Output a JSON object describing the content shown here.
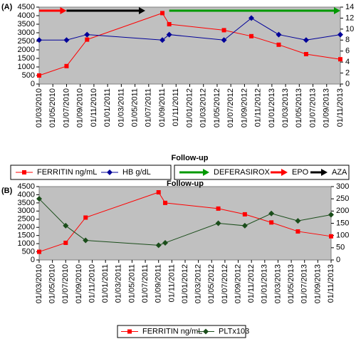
{
  "chart_data": [
    {
      "type": "line",
      "label": "(A)",
      "xlabel": "Follow-up",
      "xlim": [
        0,
        44
      ],
      "xticks": [
        {
          "value": 0,
          "label": "01/03/2010"
        },
        {
          "value": 2,
          "label": "01/05/2010"
        },
        {
          "value": 4,
          "label": "01/07/2010"
        },
        {
          "value": 6,
          "label": "01/09/2010"
        },
        {
          "value": 8,
          "label": "01/11/2010"
        },
        {
          "value": 10,
          "label": "01/01/2011"
        },
        {
          "value": 12,
          "label": "01/03/2011"
        },
        {
          "value": 14,
          "label": "01/05/2011"
        },
        {
          "value": 16,
          "label": "01/07/2011"
        },
        {
          "value": 18,
          "label": "01/09/2011"
        },
        {
          "value": 20,
          "label": "01/11/2011"
        },
        {
          "value": 22,
          "label": "01/01/2012"
        },
        {
          "value": 24,
          "label": "01/03/2012"
        },
        {
          "value": 26,
          "label": "01/05/2012"
        },
        {
          "value": 28,
          "label": "01/07/2012"
        },
        {
          "value": 30,
          "label": "01/09/2012"
        },
        {
          "value": 32,
          "label": "01/11/2012"
        },
        {
          "value": 34,
          "label": "01/01/2013"
        },
        {
          "value": 36,
          "label": "01/03/2013"
        },
        {
          "value": 38,
          "label": "01/05/2013"
        },
        {
          "value": 40,
          "label": "01/07/2013"
        },
        {
          "value": 42,
          "label": "01/09/2013"
        },
        {
          "value": 44,
          "label": "01/11/2013"
        }
      ],
      "ylim": [
        0,
        4500
      ],
      "yticks": [
        0,
        500,
        1000,
        1500,
        2000,
        2500,
        3000,
        3500,
        4000,
        4500
      ],
      "y2lim": [
        0,
        14
      ],
      "y2ticks": [
        0,
        2,
        4,
        6,
        8,
        10,
        12,
        14
      ],
      "background": "#c0c0c0",
      "series": [
        {
          "name": "FERRITIN ng/mL",
          "color": "#ff0000",
          "marker": "square",
          "x": [
            0,
            4,
            7,
            18,
            19,
            27,
            31,
            35,
            39,
            44
          ],
          "values": [
            500,
            1050,
            2600,
            4150,
            3500,
            3150,
            2800,
            2300,
            1750,
            1450
          ]
        },
        {
          "name": "HB g/dL",
          "color": "#000099",
          "marker": "diamond",
          "axis": "y2",
          "x": [
            0,
            4,
            7,
            18,
            19,
            27,
            31,
            35,
            39,
            44
          ],
          "values": [
            8,
            8,
            9,
            8,
            9,
            8,
            12,
            9,
            8,
            9
          ]
        }
      ],
      "arrows": [
        {
          "name": "DEFERASIROX",
          "color": "#009900",
          "x": [
            19,
            44
          ]
        },
        {
          "name": "EPO",
          "color": "#ff0000",
          "x": [
            0,
            4
          ]
        },
        {
          "name": "AZA",
          "color": "#000000",
          "x": [
            4,
            15.5
          ]
        }
      ]
    },
    {
      "type": "line",
      "label": "(B)",
      "xlabel": "Follow-up",
      "xlim": [
        0,
        44
      ],
      "xticks": [
        {
          "value": 0,
          "label": "01/03/2010"
        },
        {
          "value": 2,
          "label": "01/05/2010"
        },
        {
          "value": 4,
          "label": "01/07/2010"
        },
        {
          "value": 6,
          "label": "01/09/2010"
        },
        {
          "value": 8,
          "label": "01/11/2010"
        },
        {
          "value": 10,
          "label": "01/01/2011"
        },
        {
          "value": 12,
          "label": "01/03/2011"
        },
        {
          "value": 14,
          "label": "01/05/2011"
        },
        {
          "value": 16,
          "label": "01/07/2011"
        },
        {
          "value": 18,
          "label": "01/09/2011"
        },
        {
          "value": 20,
          "label": "01/11/2011"
        },
        {
          "value": 22,
          "label": "01/01/2012"
        },
        {
          "value": 24,
          "label": "01/03/2012"
        },
        {
          "value": 26,
          "label": "01/05/2012"
        },
        {
          "value": 28,
          "label": "01/07/2012"
        },
        {
          "value": 30,
          "label": "01/09/2012"
        },
        {
          "value": 32,
          "label": "01/11/2012"
        },
        {
          "value": 34,
          "label": "01/01/2013"
        },
        {
          "value": 36,
          "label": "01/03/2013"
        },
        {
          "value": 38,
          "label": "01/05/2013"
        },
        {
          "value": 40,
          "label": "01/07/2013"
        },
        {
          "value": 42,
          "label": "01/09/2013"
        },
        {
          "value": 44,
          "label": "01/11/2013"
        }
      ],
      "ylim": [
        0,
        4500
      ],
      "yticks": [
        0,
        500,
        1000,
        1500,
        2000,
        2500,
        3000,
        3500,
        4000,
        4500
      ],
      "y2lim": [
        0,
        300
      ],
      "y2ticks": [
        0,
        50,
        100,
        150,
        200,
        250,
        300
      ],
      "background": "#c0c0c0",
      "series": [
        {
          "name": "FERRITIN ng/mL",
          "color": "#ff0000",
          "marker": "square",
          "x": [
            0,
            4,
            7,
            18,
            19,
            27,
            31,
            35,
            39,
            44
          ],
          "values": [
            500,
            1050,
            2600,
            4150,
            3500,
            3150,
            2800,
            2300,
            1750,
            1450
          ]
        },
        {
          "name": "PLTx103",
          "color": "#1a4d1a",
          "marker": "diamond",
          "axis": "y2",
          "x": [
            0,
            4,
            7,
            18,
            19,
            27,
            31,
            35,
            39,
            44
          ],
          "values": [
            250,
            140,
            80,
            60,
            70,
            150,
            140,
            190,
            160,
            185
          ]
        }
      ]
    }
  ]
}
